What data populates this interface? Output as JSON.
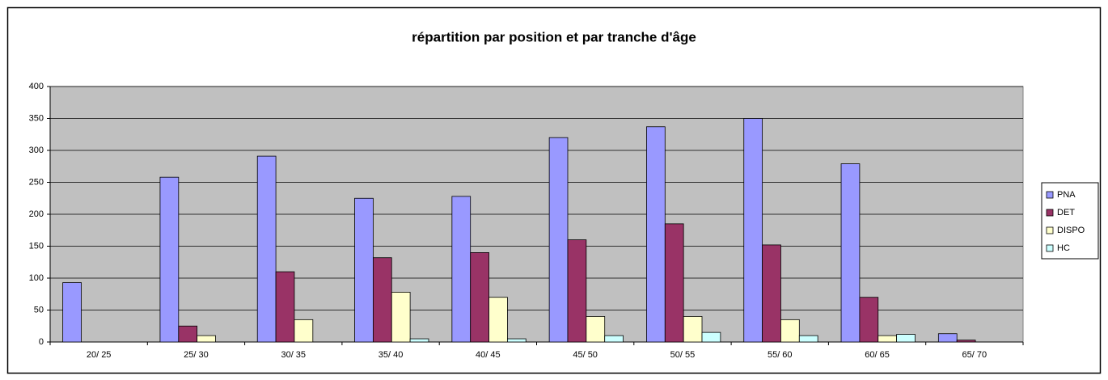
{
  "chart_data": {
    "type": "bar",
    "title": "répartition par position et par tranche d'âge",
    "categories": [
      "20/ 25",
      "25/ 30",
      "30/ 35",
      "35/ 40",
      "40/ 45",
      "45/ 50",
      "50/ 55",
      "55/ 60",
      "60/ 65",
      "65/ 70"
    ],
    "series": [
      {
        "name": "PNA",
        "color": "#9999ff",
        "values": [
          93,
          258,
          291,
          225,
          228,
          320,
          337,
          350,
          279,
          13
        ]
      },
      {
        "name": "DET",
        "color": "#993366",
        "values": [
          0,
          25,
          110,
          132,
          140,
          160,
          185,
          152,
          70,
          3
        ]
      },
      {
        "name": "DISPO",
        "color": "#ffffcc",
        "values": [
          0,
          10,
          35,
          78,
          70,
          40,
          40,
          35,
          10,
          0
        ]
      },
      {
        "name": "HC",
        "color": "#ccffff",
        "values": [
          0,
          0,
          0,
          5,
          5,
          10,
          15,
          10,
          12,
          0
        ]
      }
    ],
    "ylim": [
      0,
      400
    ],
    "yticks": [
      0,
      50,
      100,
      150,
      200,
      250,
      300,
      350,
      400
    ],
    "grid": true,
    "legend": "right"
  }
}
